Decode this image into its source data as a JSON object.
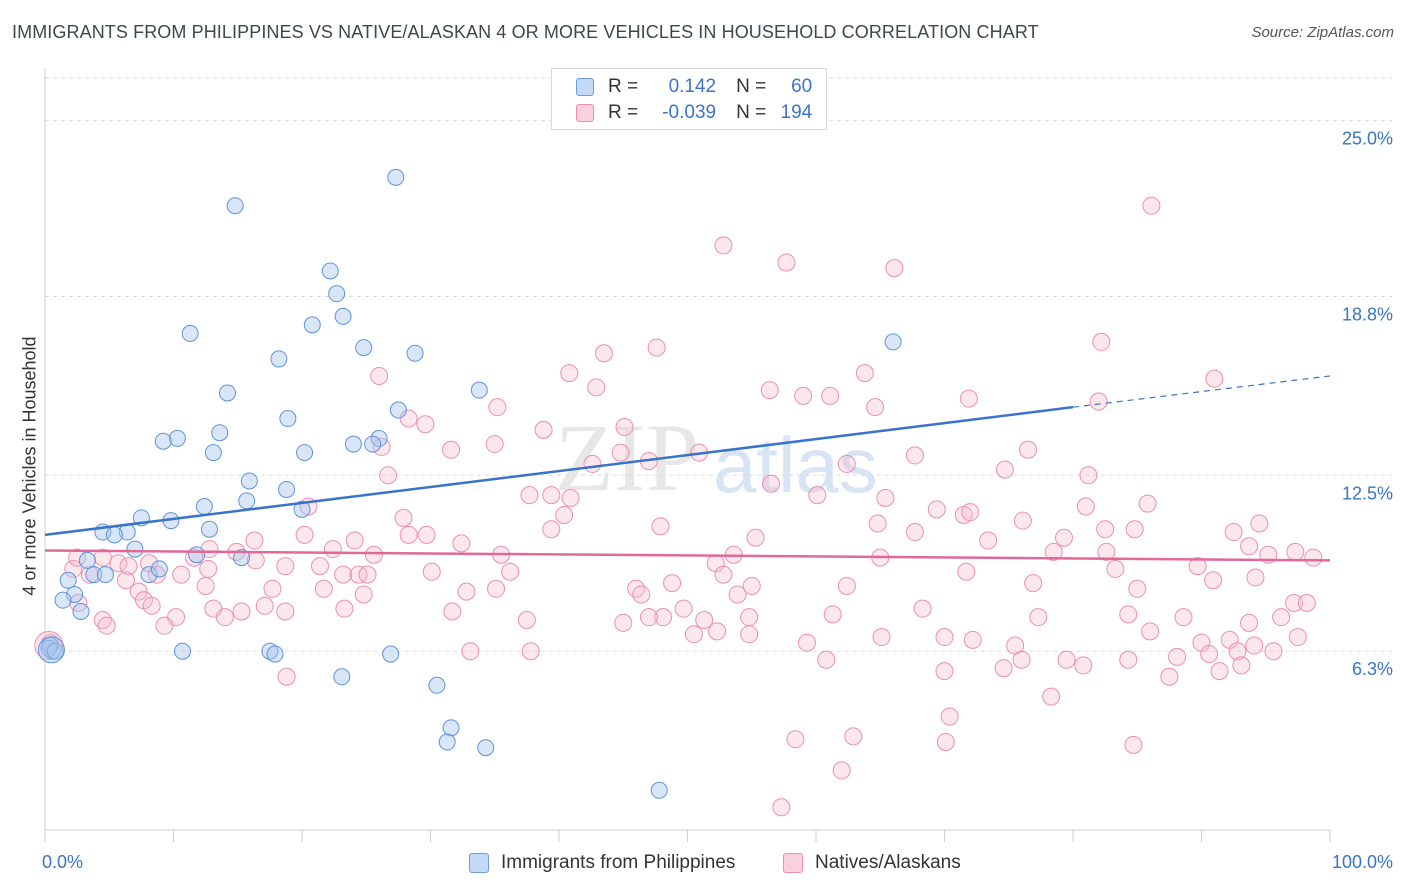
{
  "title": "IMMIGRANTS FROM PHILIPPINES VS NATIVE/ALASKAN 4 OR MORE VEHICLES IN HOUSEHOLD CORRELATION CHART",
  "source": "Source: ZipAtlas.com",
  "watermark": {
    "zip": "ZIP",
    "atlas": "atlas"
  },
  "legend": {
    "rows": [
      {
        "r_label": "R =",
        "r_value": "0.142",
        "n_label": "N =",
        "n_value": "60",
        "color": "#a9c8f0"
      },
      {
        "r_label": "R =",
        "r_value": "-0.039",
        "n_label": "N =",
        "n_value": "194",
        "color": "#f6b9cc"
      }
    ]
  },
  "bottom_legend": {
    "series1": "Immigrants from Philippines",
    "series2": "Natives/Alaskans"
  },
  "chart_data": {
    "type": "scatter",
    "title": "IMMIGRANTS FROM PHILIPPINES VS NATIVE/ALASKAN 4 OR MORE VEHICLES IN HOUSEHOLD CORRELATION CHART",
    "xlabel": "",
    "ylabel": "4 or more Vehicles in Household",
    "xlim": [
      0,
      100
    ],
    "ylim": [
      0,
      26.5
    ],
    "x_tick_labels": [
      "0.0%",
      "100.0%"
    ],
    "y_ticks": [
      6.3,
      12.5,
      18.8,
      25.0
    ],
    "y_tick_labels": [
      "6.3%",
      "12.5%",
      "18.8%",
      "25.0%"
    ],
    "grid": true,
    "colors": {
      "series1": "#3a74c8",
      "series1_fill": "#a9c8f0",
      "series2": "#e0689a",
      "series2_fill": "#f6b9cc"
    },
    "series": [
      {
        "name": "Immigrants from Philippines",
        "r": 0.142,
        "n": 60,
        "trend": {
          "x0": 0,
          "y0": 10.4,
          "x1": 80,
          "y1": 14.9,
          "dash_x1": 100,
          "dash_y1": 16.0
        },
        "points": [
          [
            27.3,
            23.0
          ],
          [
            14.8,
            22.0
          ],
          [
            22.2,
            19.7
          ],
          [
            22.7,
            18.9
          ],
          [
            23.2,
            18.1
          ],
          [
            20.8,
            17.8
          ],
          [
            11.3,
            17.5
          ],
          [
            24.8,
            17.0
          ],
          [
            28.8,
            16.8
          ],
          [
            18.2,
            16.6
          ],
          [
            14.2,
            15.4
          ],
          [
            33.8,
            15.5
          ],
          [
            27.5,
            14.8
          ],
          [
            18.9,
            14.5
          ],
          [
            26.0,
            13.8
          ],
          [
            25.5,
            13.6
          ],
          [
            13.6,
            14.0
          ],
          [
            10.3,
            13.8
          ],
          [
            9.2,
            13.7
          ],
          [
            13.1,
            13.3
          ],
          [
            20.2,
            13.3
          ],
          [
            24.0,
            13.6
          ],
          [
            15.9,
            12.3
          ],
          [
            18.8,
            12.0
          ],
          [
            15.7,
            11.6
          ],
          [
            12.4,
            11.4
          ],
          [
            7.5,
            11.0
          ],
          [
            9.8,
            10.9
          ],
          [
            12.8,
            10.6
          ],
          [
            4.5,
            10.5
          ],
          [
            6.4,
            10.5
          ],
          [
            5.4,
            10.4
          ],
          [
            20.0,
            11.3
          ],
          [
            15.3,
            9.6
          ],
          [
            7.0,
            9.9
          ],
          [
            11.8,
            9.7
          ],
          [
            3.3,
            9.5
          ],
          [
            3.8,
            9.0
          ],
          [
            4.7,
            9.0
          ],
          [
            8.1,
            9.0
          ],
          [
            8.9,
            9.2
          ],
          [
            1.8,
            8.8
          ],
          [
            2.3,
            8.3
          ],
          [
            1.4,
            8.1
          ],
          [
            2.8,
            7.7
          ],
          [
            10.7,
            6.3
          ],
          [
            17.5,
            6.3
          ],
          [
            17.9,
            6.2
          ],
          [
            26.9,
            6.2
          ],
          [
            0.6,
            6.3
          ],
          [
            0.4,
            6.5
          ],
          [
            23.1,
            5.4
          ],
          [
            30.5,
            5.1
          ],
          [
            31.6,
            3.6
          ],
          [
            31.3,
            3.1
          ],
          [
            34.3,
            2.9
          ],
          [
            47.8,
            1.4
          ],
          [
            66.0,
            17.2
          ],
          [
            0.3,
            6.4
          ],
          [
            0.8,
            6.3
          ]
        ]
      },
      {
        "name": "Natives/Alaskans",
        "r": -0.039,
        "n": 194,
        "trend": {
          "x0": 0,
          "y0": 9.85,
          "x1": 100,
          "y1": 9.5
        },
        "points": [
          [
            86.1,
            22.0
          ],
          [
            52.8,
            20.6
          ],
          [
            57.7,
            20.0
          ],
          [
            66.1,
            19.8
          ],
          [
            82.2,
            17.2
          ],
          [
            47.6,
            17.0
          ],
          [
            43.5,
            16.8
          ],
          [
            91.0,
            15.9
          ],
          [
            63.8,
            16.1
          ],
          [
            40.8,
            16.1
          ],
          [
            26.0,
            16.0
          ],
          [
            42.9,
            15.6
          ],
          [
            56.4,
            15.5
          ],
          [
            59.0,
            15.3
          ],
          [
            61.1,
            15.3
          ],
          [
            71.9,
            15.2
          ],
          [
            82.0,
            15.1
          ],
          [
            35.2,
            14.9
          ],
          [
            64.6,
            14.9
          ],
          [
            28.3,
            14.5
          ],
          [
            29.6,
            14.3
          ],
          [
            45.1,
            14.2
          ],
          [
            38.8,
            14.1
          ],
          [
            35.0,
            13.6
          ],
          [
            26.2,
            13.5
          ],
          [
            31.6,
            13.4
          ],
          [
            44.8,
            13.3
          ],
          [
            76.5,
            13.4
          ],
          [
            67.7,
            13.2
          ],
          [
            50.9,
            13.3
          ],
          [
            62.4,
            12.9
          ],
          [
            74.7,
            12.7
          ],
          [
            42.6,
            12.9
          ],
          [
            47.0,
            13.0
          ],
          [
            26.7,
            12.5
          ],
          [
            81.2,
            12.5
          ],
          [
            56.5,
            12.2
          ],
          [
            60.1,
            11.8
          ],
          [
            39.4,
            11.8
          ],
          [
            37.7,
            11.8
          ],
          [
            40.9,
            11.7
          ],
          [
            65.4,
            11.7
          ],
          [
            85.8,
            11.5
          ],
          [
            69.4,
            11.3
          ],
          [
            81.0,
            11.4
          ],
          [
            71.5,
            11.1
          ],
          [
            40.4,
            11.1
          ],
          [
            20.5,
            11.4
          ],
          [
            27.9,
            11.0
          ],
          [
            76.1,
            10.9
          ],
          [
            64.8,
            10.8
          ],
          [
            72.0,
            11.2
          ],
          [
            39.4,
            10.6
          ],
          [
            47.9,
            10.7
          ],
          [
            82.5,
            10.6
          ],
          [
            79.3,
            10.3
          ],
          [
            84.8,
            10.6
          ],
          [
            94.5,
            10.8
          ],
          [
            67.7,
            10.5
          ],
          [
            92.5,
            10.5
          ],
          [
            73.4,
            10.2
          ],
          [
            55.3,
            10.3
          ],
          [
            20.2,
            10.4
          ],
          [
            28.3,
            10.4
          ],
          [
            24.1,
            10.2
          ],
          [
            29.7,
            10.4
          ],
          [
            16.3,
            10.2
          ],
          [
            32.4,
            10.1
          ],
          [
            93.7,
            10.0
          ],
          [
            78.5,
            9.8
          ],
          [
            97.3,
            9.8
          ],
          [
            65.0,
            9.6
          ],
          [
            82.6,
            9.8
          ],
          [
            95.2,
            9.7
          ],
          [
            35.5,
            9.7
          ],
          [
            25.6,
            9.7
          ],
          [
            22.4,
            9.9
          ],
          [
            12.8,
            9.9
          ],
          [
            14.9,
            9.8
          ],
          [
            16.4,
            9.5
          ],
          [
            11.6,
            9.6
          ],
          [
            8.1,
            9.4
          ],
          [
            4.5,
            9.6
          ],
          [
            2.2,
            9.2
          ],
          [
            2.5,
            9.6
          ],
          [
            5.7,
            9.4
          ],
          [
            6.5,
            9.3
          ],
          [
            12.7,
            9.2
          ],
          [
            18.7,
            9.3
          ],
          [
            21.4,
            9.3
          ],
          [
            23.2,
            9.0
          ],
          [
            24.4,
            9.0
          ],
          [
            25.1,
            9.0
          ],
          [
            30.1,
            9.1
          ],
          [
            36.2,
            9.1
          ],
          [
            52.2,
            9.4
          ],
          [
            53.6,
            9.7
          ],
          [
            52.8,
            9.0
          ],
          [
            71.7,
            9.1
          ],
          [
            83.3,
            9.2
          ],
          [
            89.7,
            9.3
          ],
          [
            90.9,
            8.8
          ],
          [
            94.2,
            8.9
          ],
          [
            98.7,
            9.6
          ],
          [
            10.6,
            9.0
          ],
          [
            8.7,
            9.0
          ],
          [
            3.5,
            9.0
          ],
          [
            6.3,
            8.8
          ],
          [
            7.3,
            8.4
          ],
          [
            12.5,
            8.6
          ],
          [
            17.7,
            8.5
          ],
          [
            21.7,
            8.5
          ],
          [
            24.8,
            8.3
          ],
          [
            32.8,
            8.4
          ],
          [
            35.1,
            8.5
          ],
          [
            46.0,
            8.5
          ],
          [
            46.4,
            8.3
          ],
          [
            48.8,
            8.7
          ],
          [
            53.9,
            8.3
          ],
          [
            55.0,
            8.6
          ],
          [
            62.4,
            8.6
          ],
          [
            76.9,
            8.7
          ],
          [
            85.0,
            8.5
          ],
          [
            2.6,
            8.0
          ],
          [
            7.7,
            8.1
          ],
          [
            17.1,
            7.9
          ],
          [
            15.3,
            7.7
          ],
          [
            18.7,
            7.7
          ],
          [
            23.3,
            7.8
          ],
          [
            13.1,
            7.8
          ],
          [
            8.3,
            7.9
          ],
          [
            10.2,
            7.5
          ],
          [
            14.0,
            7.5
          ],
          [
            31.7,
            7.7
          ],
          [
            37.5,
            7.4
          ],
          [
            49.7,
            7.8
          ],
          [
            48.1,
            7.5
          ],
          [
            47.0,
            7.5
          ],
          [
            45.0,
            7.3
          ],
          [
            51.3,
            7.4
          ],
          [
            54.8,
            7.5
          ],
          [
            61.3,
            7.6
          ],
          [
            68.3,
            7.8
          ],
          [
            77.3,
            7.5
          ],
          [
            84.3,
            7.6
          ],
          [
            88.6,
            7.5
          ],
          [
            93.7,
            7.3
          ],
          [
            97.2,
            8.0
          ],
          [
            98.2,
            8.0
          ],
          [
            96.2,
            7.5
          ],
          [
            4.5,
            7.4
          ],
          [
            4.8,
            7.2
          ],
          [
            9.3,
            7.2
          ],
          [
            52.3,
            7.0
          ],
          [
            50.5,
            6.9
          ],
          [
            54.8,
            6.9
          ],
          [
            59.3,
            6.6
          ],
          [
            65.1,
            6.8
          ],
          [
            70.0,
            6.8
          ],
          [
            72.2,
            6.7
          ],
          [
            75.5,
            6.5
          ],
          [
            86.0,
            7.0
          ],
          [
            90.0,
            6.6
          ],
          [
            92.2,
            6.7
          ],
          [
            94.1,
            6.5
          ],
          [
            97.5,
            6.8
          ],
          [
            92.8,
            6.3
          ],
          [
            95.6,
            6.3
          ],
          [
            90.6,
            6.2
          ],
          [
            88.1,
            6.1
          ],
          [
            84.3,
            6.0
          ],
          [
            79.5,
            6.0
          ],
          [
            76.0,
            6.0
          ],
          [
            60.8,
            6.0
          ],
          [
            74.6,
            5.7
          ],
          [
            70.0,
            5.6
          ],
          [
            80.8,
            5.8
          ],
          [
            87.5,
            5.4
          ],
          [
            91.4,
            5.6
          ],
          [
            93.1,
            5.8
          ],
          [
            33.1,
            6.3
          ],
          [
            37.8,
            6.3
          ],
          [
            18.8,
            5.4
          ],
          [
            78.3,
            4.7
          ],
          [
            70.4,
            4.0
          ],
          [
            58.4,
            3.2
          ],
          [
            62.9,
            3.3
          ],
          [
            70.1,
            3.1
          ],
          [
            84.7,
            3.0
          ],
          [
            62.0,
            2.1
          ],
          [
            57.3,
            0.8
          ],
          [
            0.4,
            6.6
          ]
        ]
      }
    ]
  }
}
